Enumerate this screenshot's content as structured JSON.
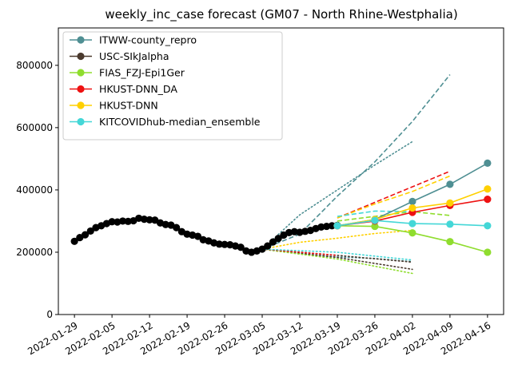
{
  "chart_data": {
    "type": "line",
    "title": "weekly_inc_case forecast (GM07 - North Rhine-Westphalia)",
    "xlabel": "",
    "ylabel": "",
    "ylim": [
      0,
      920000
    ],
    "xlim": [
      "2022-01-26",
      "2022-04-19"
    ],
    "grid": false,
    "legend_position": "top-left",
    "x_ticks": [
      "2022-01-29",
      "2022-02-05",
      "2022-02-12",
      "2022-02-19",
      "2022-02-26",
      "2022-03-05",
      "2022-03-12",
      "2022-03-19",
      "2022-03-26",
      "2022-04-02",
      "2022-04-09",
      "2022-04-16"
    ],
    "y_ticks": [
      0,
      200000,
      400000,
      600000,
      800000
    ],
    "y_tick_labels": [
      "0",
      "200000",
      "400000",
      "600000",
      "800000"
    ],
    "observed": {
      "color": "#000000",
      "x": [
        "2022-01-29",
        "2022-01-30",
        "2022-01-31",
        "2022-02-01",
        "2022-02-02",
        "2022-02-03",
        "2022-02-04",
        "2022-02-05",
        "2022-02-06",
        "2022-02-07",
        "2022-02-08",
        "2022-02-09",
        "2022-02-10",
        "2022-02-11",
        "2022-02-12",
        "2022-02-13",
        "2022-02-14",
        "2022-02-15",
        "2022-02-16",
        "2022-02-17",
        "2022-02-18",
        "2022-02-19",
        "2022-02-20",
        "2022-02-21",
        "2022-02-22",
        "2022-02-23",
        "2022-02-24",
        "2022-02-25",
        "2022-02-26",
        "2022-02-27",
        "2022-02-28",
        "2022-03-01",
        "2022-03-02",
        "2022-03-03",
        "2022-03-04",
        "2022-03-05",
        "2022-03-06",
        "2022-03-07",
        "2022-03-08",
        "2022-03-09",
        "2022-03-10",
        "2022-03-11",
        "2022-03-12",
        "2022-03-13",
        "2022-03-14",
        "2022-03-15",
        "2022-03-16",
        "2022-03-17",
        "2022-03-18",
        "2022-03-19"
      ],
      "y": [
        235000,
        247000,
        256000,
        268000,
        279000,
        285000,
        292000,
        298000,
        297000,
        300000,
        299000,
        301000,
        309000,
        306000,
        304000,
        303000,
        294000,
        289000,
        287000,
        279000,
        266000,
        258000,
        255000,
        251000,
        240000,
        236000,
        230000,
        226000,
        225000,
        224000,
        220000,
        216000,
        204000,
        200000,
        204000,
        210000,
        220000,
        233000,
        244000,
        255000,
        263000,
        266000,
        264000,
        267000,
        270000,
        276000,
        281000,
        283000,
        285000,
        286000
      ]
    },
    "series": [
      {
        "name": "ITWW-county_repro",
        "color": "#4f8f93",
        "x": [
          "2022-03-19",
          "2022-03-26",
          "2022-04-02",
          "2022-04-09",
          "2022-04-16"
        ],
        "y": [
          285000,
          305000,
          363000,
          418000,
          486000
        ],
        "dashed": {
          "x": [
            "2022-03-05",
            "2022-03-12",
            "2022-03-19",
            "2022-03-26",
            "2022-04-02",
            "2022-04-09"
          ],
          "y": [
            210000,
            258000,
            380000,
            490000,
            620000,
            770000
          ]
        },
        "dotted_upper": {
          "x": [
            "2022-03-05",
            "2022-03-12",
            "2022-03-19",
            "2022-03-26",
            "2022-04-02"
          ],
          "y": [
            210000,
            320000,
            400000,
            480000,
            555000
          ]
        },
        "dotted_lower": {
          "x": [
            "2022-03-05",
            "2022-03-12",
            "2022-03-19",
            "2022-03-26",
            "2022-04-02"
          ],
          "y": [
            210000,
            195000,
            185000,
            180000,
            170000
          ]
        }
      },
      {
        "name": "USC-SIkJalpha",
        "color": "#4b3a2e",
        "x": [
          "2022-03-19"
        ],
        "y": [
          285000
        ],
        "dotted_upper": {
          "x": [
            "2022-03-05",
            "2022-03-19",
            "2022-04-02"
          ],
          "y": [
            210000,
            190000,
            168000
          ]
        },
        "dotted_lower": {
          "x": [
            "2022-03-05",
            "2022-03-19",
            "2022-04-02"
          ],
          "y": [
            210000,
            183000,
            145000
          ]
        }
      },
      {
        "name": "FIAS_FZJ-Epi1Ger",
        "color": "#8fdd2e",
        "x": [
          "2022-03-19",
          "2022-03-26",
          "2022-04-02",
          "2022-04-09",
          "2022-04-16"
        ],
        "y": [
          285000,
          283000,
          262000,
          234000,
          200000
        ],
        "dashed": {
          "x": [
            "2022-03-19",
            "2022-04-02",
            "2022-04-09"
          ],
          "y": [
            300000,
            330000,
            318000
          ]
        },
        "dotted_lower": {
          "x": [
            "2022-03-05",
            "2022-03-19",
            "2022-04-02"
          ],
          "y": [
            210000,
            178000,
            132000
          ]
        }
      },
      {
        "name": "HKUST-DNN_DA",
        "color": "#ee1111",
        "x": [
          "2022-03-19",
          "2022-03-26",
          "2022-04-02",
          "2022-04-09",
          "2022-04-16"
        ],
        "y": [
          285000,
          300000,
          328000,
          350000,
          370000
        ],
        "dashed": {
          "x": [
            "2022-03-19",
            "2022-03-26",
            "2022-04-02",
            "2022-04-09"
          ],
          "y": [
            310000,
            360000,
            410000,
            460000
          ]
        },
        "dotted_lower": {
          "x": [
            "2022-03-05",
            "2022-03-12",
            "2022-03-19"
          ],
          "y": [
            210000,
            200000,
            190000
          ]
        }
      },
      {
        "name": "HKUST-DNN",
        "color": "#ffd000",
        "x": [
          "2022-03-19",
          "2022-03-26",
          "2022-04-02",
          "2022-04-09",
          "2022-04-16"
        ],
        "y": [
          285000,
          305000,
          342000,
          358000,
          403000
        ],
        "dashed": {
          "x": [
            "2022-03-19",
            "2022-03-26",
            "2022-04-02",
            "2022-04-09"
          ],
          "y": [
            310000,
            355000,
            395000,
            445000
          ]
        },
        "dotted_lower": {
          "x": [
            "2022-03-05",
            "2022-03-12",
            "2022-03-19",
            "2022-03-26",
            "2022-04-02"
          ],
          "y": [
            210000,
            232000,
            245000,
            260000,
            270000
          ]
        }
      },
      {
        "name": "KITCOVIDhub-median_ensemble",
        "color": "#44d7d7",
        "x": [
          "2022-03-19",
          "2022-03-26",
          "2022-04-02",
          "2022-04-09",
          "2022-04-16"
        ],
        "y": [
          285000,
          302000,
          292000,
          290000,
          285000
        ],
        "dashed": {
          "x": [
            "2022-03-19",
            "2022-03-26",
            "2022-04-02"
          ],
          "y": [
            315000,
            332000,
            330000
          ]
        },
        "dotted_lower": {
          "x": [
            "2022-03-05",
            "2022-03-19",
            "2022-04-02"
          ],
          "y": [
            210000,
            200000,
            175000
          ]
        }
      }
    ]
  }
}
